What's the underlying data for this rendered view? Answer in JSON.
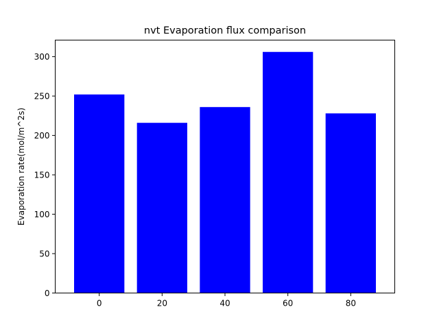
{
  "chart_data": {
    "type": "bar",
    "title": "nvt Evaporation flux comparison",
    "xlabel": "",
    "ylabel": "Evaporation rate(mol/m^2s)",
    "categories": [
      "0",
      "20",
      "40",
      "60",
      "80"
    ],
    "x": [
      0,
      20,
      40,
      60,
      80
    ],
    "values": [
      252,
      216,
      236,
      306,
      228
    ],
    "bar_color": "#0000ff",
    "xlim": [
      -14,
      94
    ],
    "ylim": [
      0,
      321
    ],
    "xticks": [
      0,
      20,
      40,
      60,
      80
    ],
    "yticks": [
      0,
      50,
      100,
      150,
      200,
      250,
      300
    ],
    "grid": false,
    "legend": "none"
  }
}
